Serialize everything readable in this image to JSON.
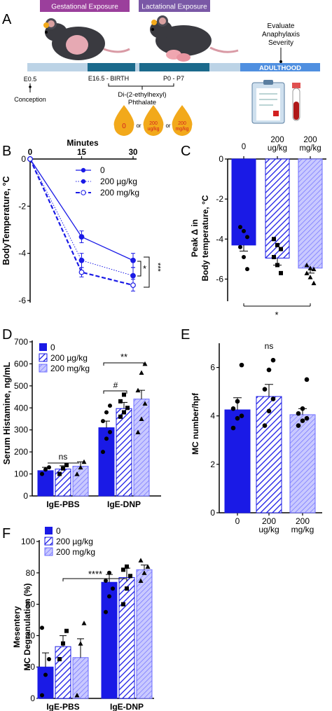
{
  "colors": {
    "blue": "#1a1ae6",
    "blue_hatch": "#1a1ae6",
    "light_hatch": "#6b6bff",
    "light_fill": "#c9c9ff",
    "timeline_light": "#bcd3e6",
    "timeline_dark": "#1b6a8c",
    "timeline_adult": "#4f8fe0",
    "label_purple": "#9b3f9c",
    "label_violet": "#7a58a6",
    "drop": "#f2a91b",
    "drop_text": "#d22020"
  },
  "panel_a": {
    "letter": "A",
    "gestational_label": "Gestational Exposure",
    "lactational_label": "Lactational Exposure",
    "evaluate_label": [
      "Evaluate",
      "Anaphylaxis",
      "Severity"
    ],
    "adulthood_label": "ADULTHOOD",
    "e05": "E0.5",
    "conception": "Conception",
    "e165": "E16.5 - BIRTH",
    "p0p7": "P0 - P7",
    "phthalate": [
      "Di-(2-ethylhexyl)",
      "Phthalate"
    ],
    "drop0": "0",
    "drop200": [
      "200",
      "ug/kg"
    ],
    "drop200mg": [
      "200",
      "mg/kg"
    ],
    "or": "or",
    "icons": [
      "pregnant-mouse-icon",
      "nursing-mouse-icon",
      "clipboard-icon",
      "blood-tube-icon"
    ]
  },
  "panel_b_text": {
    "letter": "B",
    "xlabel": "Minutes",
    "ylabel": "BodyTemperature, °C",
    "legend": [
      "0",
      "200 µg/kg",
      "200 mg/kg"
    ],
    "sig1": "*",
    "sig2": "***"
  },
  "panel_c_text": {
    "letter": "C",
    "ylabel_1": "Peak Δ in",
    "ylabel_2": "Body temperature, °C",
    "sig": "*"
  },
  "panel_d_text": {
    "letter": "D",
    "ylabel": "Serum Histamine, ng/mL",
    "legend": [
      "0",
      "200 µg/kg",
      "200 mg/kg"
    ],
    "ns": "ns",
    "hash": "#",
    "sig": "**"
  },
  "panel_e_text": {
    "letter": "E",
    "ylabel": "MC number/hpf",
    "ns": "ns"
  },
  "panel_f_text": {
    "letter": "F",
    "ylabel_1": "Mesentery",
    "ylabel_2": "MC Degranulation (%)",
    "legend": [
      "0",
      "200 µg/kg",
      "200 mg/kg"
    ],
    "sig": "****"
  },
  "chart_data": [
    {
      "panel": "B",
      "type": "line",
      "x": [
        0,
        15,
        30
      ],
      "xticks": [
        "0",
        "15",
        "30"
      ],
      "xlabel": "Minutes",
      "ylabel": "BodyTemperature, °C",
      "ylim": [
        -6,
        0
      ],
      "yticks": [
        0,
        -2,
        -4,
        -6
      ],
      "series": [
        {
          "name": "0",
          "values": [
            0,
            -3.3,
            -4.3
          ],
          "err": [
            0,
            0.25,
            0.3
          ],
          "style": "solid"
        },
        {
          "name": "200 µg/kg",
          "values": [
            0,
            -4.3,
            -4.95
          ],
          "err": [
            0,
            0.3,
            0.35
          ],
          "style": "dotted"
        },
        {
          "name": "200 mg/kg",
          "values": [
            0,
            -4.8,
            -5.35
          ],
          "err": [
            0,
            0.2,
            0.25
          ],
          "style": "dashed"
        }
      ]
    },
    {
      "panel": "C",
      "type": "bar",
      "categories": [
        "0",
        "200 ug/kg",
        "200 mg/kg"
      ],
      "values": [
        -4.3,
        -4.95,
        -5.45
      ],
      "err": [
        0.3,
        0.35,
        0.25
      ],
      "ylabel": "Peak Δ in Body temperature, °C",
      "ylim": [
        -7,
        0
      ],
      "yticks": [
        0,
        -2,
        -4,
        -6
      ],
      "points": [
        [
          -3.4,
          -3.6,
          -3.9,
          -4.4,
          -4.9,
          -5.5
        ],
        [
          -4.0,
          -4.3,
          -4.5,
          -4.9,
          -5.3,
          -5.7
        ],
        [
          -5.3,
          -5.45,
          -5.5,
          -5.7,
          -5.9,
          -6.2
        ]
      ]
    },
    {
      "panel": "D",
      "type": "bar",
      "groups": [
        "IgE-PBS",
        "IgE-DNP"
      ],
      "series": [
        {
          "name": "0",
          "values": [
            115,
            310
          ],
          "err": [
            15,
            30
          ]
        },
        {
          "name": "200 µg/kg",
          "values": [
            122,
            397
          ],
          "err": [
            15,
            28
          ]
        },
        {
          "name": "200 mg/kg",
          "values": [
            135,
            440
          ],
          "err": [
            20,
            40
          ]
        }
      ],
      "ylabel": "Serum Histamine, ng/mL",
      "ylim": [
        0,
        700
      ],
      "yticks": [
        0,
        100,
        200,
        300,
        400,
        500,
        600,
        700
      ],
      "points": [
        [
          [
            100,
            120,
            130
          ],
          [
            200,
            260,
            290,
            340,
            380,
            410
          ]
        ],
        [
          [
            100,
            125,
            140
          ],
          [
            360,
            380,
            400,
            430,
            460
          ]
        ],
        [
          [
            100,
            130,
            155
          ],
          [
            290,
            350,
            420,
            480,
            560,
            600
          ]
        ]
      ]
    },
    {
      "panel": "E",
      "type": "bar",
      "categories": [
        "0",
        "200 ug/kg",
        "200 mg/kg"
      ],
      "values": [
        4.25,
        4.8,
        4.05
      ],
      "err": [
        0.5,
        0.5,
        0.25
      ],
      "ylabel": "MC number/hpf",
      "ylim": [
        0,
        7
      ],
      "yticks": [
        0,
        2,
        4,
        6
      ],
      "points": [
        [
          3.5,
          3.9,
          4.0,
          4.3,
          4.6,
          6.1
        ],
        [
          3.6,
          4.2,
          4.7,
          5.1,
          5.9,
          6.3
        ],
        [
          3.6,
          3.8,
          3.9,
          4.1,
          4.3,
          5.5
        ]
      ]
    },
    {
      "panel": "F",
      "type": "bar",
      "groups": [
        "IgE-PBS",
        "IgE-DNP"
      ],
      "series": [
        {
          "name": "0",
          "values": [
            20,
            74
          ],
          "err": [
            9,
            5
          ]
        },
        {
          "name": "200 µg/kg",
          "values": [
            33,
            77
          ],
          "err": [
            7,
            6
          ]
        },
        {
          "name": "200 mg/kg",
          "values": [
            26,
            82
          ],
          "err": [
            12,
            3
          ]
        }
      ],
      "ylabel": "Mesentery MC Degranulation (%)",
      "ylim": [
        0,
        100
      ],
      "yticks": [
        0,
        20,
        40,
        60,
        80,
        100
      ],
      "points": [
        [
          [
            2,
            15,
            25,
            45
          ],
          [
            55,
            65,
            70,
            75,
            80
          ]
        ],
        [
          [
            25,
            35,
            43
          ],
          [
            60,
            70,
            78,
            82,
            84
          ]
        ],
        [
          [
            2,
            35,
            48
          ],
          [
            75,
            80,
            84,
            88
          ]
        ]
      ]
    }
  ]
}
